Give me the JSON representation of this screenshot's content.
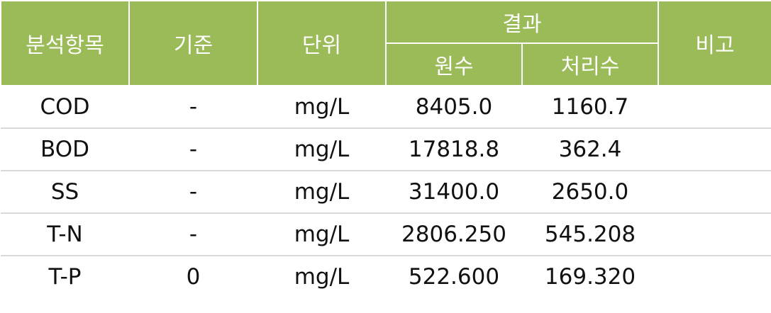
{
  "header": {
    "item": "분석항목",
    "standard": "기준",
    "unit": "단위",
    "result": "결과",
    "raw": "원수",
    "treated": "처리수",
    "remarks": "비고"
  },
  "rows": [
    {
      "item": "COD",
      "standard": "-",
      "unit": "mg/L",
      "raw": "8405.0",
      "treated": "1160.7",
      "remarks": ""
    },
    {
      "item": "BOD",
      "standard": "-",
      "unit": "mg/L",
      "raw": "17818.8",
      "treated": "362.4",
      "remarks": ""
    },
    {
      "item": "SS",
      "standard": "-",
      "unit": "mg/L",
      "raw": "31400.0",
      "treated": "2650.0",
      "remarks": ""
    },
    {
      "item": "T-N",
      "standard": "-",
      "unit": "mg/L",
      "raw": "2806.250",
      "treated": "545.208",
      "remarks": ""
    },
    {
      "item": "T-P",
      "standard": "0",
      "unit": "mg/L",
      "raw": "522.600",
      "treated": "169.320",
      "remarks": ""
    }
  ],
  "colors": {
    "header_bg": "#9bbb59",
    "header_text": "#ffffff",
    "row_divider": "#d9d9d9"
  }
}
